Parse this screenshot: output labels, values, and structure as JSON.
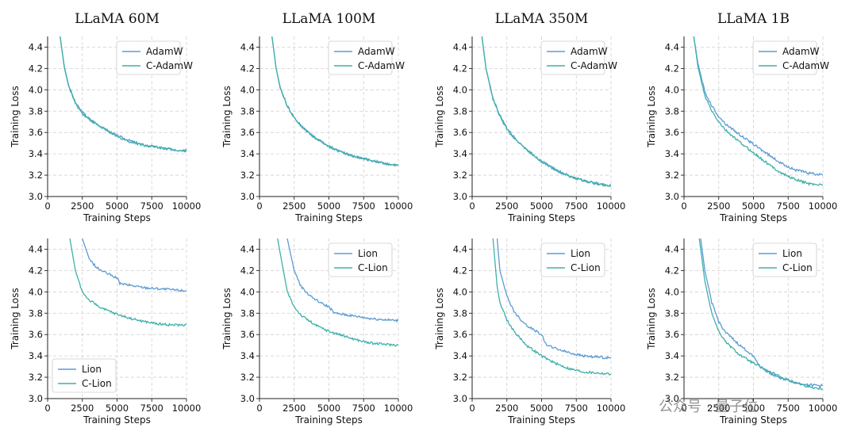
{
  "colors": {
    "adamw": "#5b9bd5",
    "c_adamw": "#3fb0a8",
    "lion": "#5b9bd5",
    "c_lion": "#3fb0a8",
    "grid": "#cfcfcf"
  },
  "watermark": "公众号 · 量子位",
  "chart_data": [
    {
      "type": "line",
      "title": "LLaMA 60M",
      "xlabel": "Training Steps",
      "ylabel": "Training Loss",
      "xlim": [
        0,
        10000
      ],
      "ylim": [
        3.0,
        4.5
      ],
      "xticks": [
        "0",
        "2500",
        "5000",
        "7500",
        "10000"
      ],
      "yticks": [
        "3.0",
        "3.2",
        "3.4",
        "3.6",
        "3.8",
        "4.0",
        "4.2",
        "4.4"
      ],
      "grid": true,
      "legend_position": "upper right",
      "series": [
        {
          "name": "AdamW",
          "color": "#5b9bd5",
          "x": [
            900,
            1200,
            1500,
            2000,
            2500,
            3000,
            4000,
            5000,
            6000,
            7000,
            8000,
            9000,
            10000
          ],
          "y": [
            4.5,
            4.22,
            4.05,
            3.88,
            3.79,
            3.73,
            3.64,
            3.57,
            3.52,
            3.48,
            3.46,
            3.44,
            3.43
          ]
        },
        {
          "name": "C-AdamW",
          "color": "#3fb0a8",
          "x": [
            900,
            1200,
            1500,
            2000,
            2500,
            3000,
            4000,
            5000,
            6000,
            7000,
            8000,
            9000,
            10000
          ],
          "y": [
            4.5,
            4.21,
            4.04,
            3.87,
            3.78,
            3.72,
            3.64,
            3.56,
            3.51,
            3.48,
            3.46,
            3.44,
            3.43
          ]
        }
      ]
    },
    {
      "type": "line",
      "title": "LLaMA 100M",
      "xlabel": "Training Steps",
      "ylabel": "Training Loss",
      "xlim": [
        0,
        10000
      ],
      "ylim": [
        3.0,
        4.5
      ],
      "xticks": [
        "0",
        "2500",
        "5000",
        "7500",
        "10000"
      ],
      "yticks": [
        "3.0",
        "3.2",
        "3.4",
        "3.6",
        "3.8",
        "4.0",
        "4.2",
        "4.4"
      ],
      "grid": true,
      "legend_position": "upper right",
      "series": [
        {
          "name": "AdamW",
          "color": "#5b9bd5",
          "x": [
            900,
            1200,
            1500,
            2000,
            2500,
            3000,
            4000,
            5000,
            6000,
            7000,
            8000,
            9000,
            10000
          ],
          "y": [
            4.5,
            4.2,
            4.02,
            3.85,
            3.74,
            3.66,
            3.55,
            3.47,
            3.41,
            3.37,
            3.34,
            3.31,
            3.29
          ]
        },
        {
          "name": "C-AdamW",
          "color": "#3fb0a8",
          "x": [
            900,
            1200,
            1500,
            2000,
            2500,
            3000,
            4000,
            5000,
            6000,
            7000,
            8000,
            9000,
            10000
          ],
          "y": [
            4.5,
            4.2,
            4.01,
            3.85,
            3.74,
            3.66,
            3.55,
            3.47,
            3.41,
            3.37,
            3.34,
            3.31,
            3.29
          ]
        }
      ]
    },
    {
      "type": "line",
      "title": "LLaMA 350M",
      "xlabel": "Training Steps",
      "ylabel": "Training Loss",
      "xlim": [
        0,
        10000
      ],
      "ylim": [
        3.0,
        4.5
      ],
      "xticks": [
        "0",
        "2500",
        "5000",
        "7500",
        "10000"
      ],
      "yticks": [
        "3.0",
        "3.2",
        "3.4",
        "3.6",
        "3.8",
        "4.0",
        "4.2",
        "4.4"
      ],
      "grid": true,
      "legend_position": "upper right",
      "series": [
        {
          "name": "AdamW",
          "color": "#5b9bd5",
          "x": [
            700,
            1000,
            1500,
            2000,
            2500,
            3000,
            4000,
            5000,
            6000,
            7000,
            8000,
            9000,
            10000
          ],
          "y": [
            4.5,
            4.2,
            3.92,
            3.76,
            3.64,
            3.56,
            3.43,
            3.33,
            3.25,
            3.19,
            3.15,
            3.12,
            3.1
          ]
        },
        {
          "name": "C-AdamW",
          "color": "#3fb0a8",
          "x": [
            700,
            1000,
            1500,
            2000,
            2500,
            3000,
            4000,
            5000,
            6000,
            7000,
            8000,
            9000,
            10000
          ],
          "y": [
            4.5,
            4.2,
            3.91,
            3.75,
            3.63,
            3.55,
            3.43,
            3.33,
            3.25,
            3.19,
            3.15,
            3.12,
            3.1
          ]
        }
      ]
    },
    {
      "type": "line",
      "title": "LLaMA 1B",
      "xlabel": "Training Steps",
      "ylabel": "Training Loss",
      "xlim": [
        0,
        10000
      ],
      "ylim": [
        3.0,
        4.5
      ],
      "xticks": [
        "0",
        "2500",
        "5000",
        "7500",
        "10000"
      ],
      "yticks": [
        "3.0",
        "3.2",
        "3.4",
        "3.6",
        "3.8",
        "4.0",
        "4.2",
        "4.4"
      ],
      "grid": true,
      "legend_position": "upper right",
      "series": [
        {
          "name": "AdamW",
          "color": "#5b9bd5",
          "x": [
            700,
            1000,
            1500,
            2000,
            2500,
            3000,
            4000,
            5000,
            6000,
            7000,
            8000,
            9000,
            10000
          ],
          "y": [
            4.5,
            4.25,
            3.98,
            3.85,
            3.75,
            3.68,
            3.58,
            3.49,
            3.4,
            3.31,
            3.25,
            3.22,
            3.2
          ]
        },
        {
          "name": "C-AdamW",
          "color": "#3fb0a8",
          "x": [
            700,
            1000,
            1500,
            2000,
            2500,
            3000,
            4000,
            5000,
            6000,
            7000,
            8000,
            9000,
            10000
          ],
          "y": [
            4.5,
            4.22,
            3.94,
            3.8,
            3.7,
            3.62,
            3.51,
            3.41,
            3.31,
            3.22,
            3.16,
            3.12,
            3.11
          ]
        }
      ]
    },
    {
      "type": "line",
      "title": "",
      "xlabel": "Training Steps",
      "ylabel": "Training Loss",
      "xlim": [
        0,
        10000
      ],
      "ylim": [
        3.0,
        4.5
      ],
      "xticks": [
        "0",
        "2500",
        "5000",
        "7500",
        "10000"
      ],
      "yticks": [
        "3.0",
        "3.2",
        "3.4",
        "3.6",
        "3.8",
        "4.0",
        "4.2",
        "4.4"
      ],
      "grid": true,
      "legend_position": "lower left",
      "series": [
        {
          "name": "Lion",
          "color": "#5b9bd5",
          "x": [
            2500,
            3000,
            3500,
            4000,
            4500,
            5000,
            5200,
            6000,
            7000,
            8000,
            9000,
            10000
          ],
          "y": [
            4.5,
            4.31,
            4.23,
            4.19,
            4.16,
            4.13,
            4.08,
            4.06,
            4.04,
            4.03,
            4.02,
            4.01
          ]
        },
        {
          "name": "C-Lion",
          "color": "#3fb0a8",
          "x": [
            1600,
            2000,
            2500,
            3000,
            4000,
            5000,
            6000,
            7000,
            8000,
            9000,
            10000
          ],
          "y": [
            4.5,
            4.2,
            4.0,
            3.92,
            3.84,
            3.79,
            3.75,
            3.72,
            3.7,
            3.69,
            3.69
          ]
        }
      ]
    },
    {
      "type": "line",
      "title": "",
      "xlabel": "Training Steps",
      "ylabel": "Training Loss",
      "xlim": [
        0,
        10000
      ],
      "ylim": [
        3.0,
        4.5
      ],
      "xticks": [
        "0",
        "2500",
        "5000",
        "7500",
        "10000"
      ],
      "yticks": [
        "3.0",
        "3.2",
        "3.4",
        "3.6",
        "3.8",
        "4.0",
        "4.2",
        "4.4"
      ],
      "grid": true,
      "legend_position": "upper right",
      "series": [
        {
          "name": "Lion",
          "color": "#5b9bd5",
          "x": [
            2000,
            2500,
            3000,
            3500,
            4000,
            4500,
            5000,
            5400,
            6000,
            7000,
            8000,
            9000,
            10000
          ],
          "y": [
            4.5,
            4.2,
            4.05,
            3.98,
            3.93,
            3.89,
            3.86,
            3.8,
            3.79,
            3.77,
            3.75,
            3.74,
            3.73
          ]
        },
        {
          "name": "C-Lion",
          "color": "#3fb0a8",
          "x": [
            1300,
            2000,
            2500,
            3000,
            4000,
            5000,
            6000,
            7000,
            8000,
            9000,
            10000
          ],
          "y": [
            4.5,
            4.0,
            3.86,
            3.78,
            3.69,
            3.63,
            3.59,
            3.55,
            3.52,
            3.51,
            3.5
          ]
        }
      ]
    },
    {
      "type": "line",
      "title": "",
      "xlabel": "Training Steps",
      "ylabel": "Training Loss",
      "xlim": [
        0,
        10000
      ],
      "ylim": [
        3.0,
        4.5
      ],
      "xticks": [
        "0",
        "2500",
        "5000",
        "7500",
        "10000"
      ],
      "yticks": [
        "3.0",
        "3.2",
        "3.4",
        "3.6",
        "3.8",
        "4.0",
        "4.2",
        "4.4"
      ],
      "grid": true,
      "legend_position": "upper right",
      "series": [
        {
          "name": "Lion",
          "color": "#5b9bd5",
          "x": [
            1800,
            2000,
            2500,
            3000,
            3500,
            4000,
            4500,
            5000,
            5300,
            6000,
            7000,
            8000,
            9000,
            10000
          ],
          "y": [
            4.5,
            4.2,
            3.96,
            3.82,
            3.74,
            3.68,
            3.64,
            3.6,
            3.51,
            3.47,
            3.43,
            3.4,
            3.39,
            3.38
          ]
        },
        {
          "name": "C-Lion",
          "color": "#3fb0a8",
          "x": [
            1500,
            1800,
            2000,
            2500,
            3000,
            4000,
            5000,
            6000,
            7000,
            8000,
            9000,
            10000
          ],
          "y": [
            4.5,
            4.05,
            3.9,
            3.74,
            3.63,
            3.49,
            3.4,
            3.33,
            3.28,
            3.25,
            3.24,
            3.23
          ]
        }
      ]
    },
    {
      "type": "line",
      "title": "",
      "xlabel": "Training Steps",
      "ylabel": "Training Loss",
      "xlim": [
        0,
        10000
      ],
      "ylim": [
        3.0,
        4.5
      ],
      "xticks": [
        "0",
        "2500",
        "5000",
        "7500",
        "10000"
      ],
      "yticks": [
        "3.0",
        "3.2",
        "3.4",
        "3.6",
        "3.8",
        "4.0",
        "4.2",
        "4.4"
      ],
      "grid": true,
      "legend_position": "upper right",
      "series": [
        {
          "name": "Lion",
          "color": "#5b9bd5",
          "x": [
            1200,
            1500,
            2000,
            2500,
            3000,
            4000,
            5000,
            5500,
            6000,
            7000,
            8000,
            9000,
            10000
          ],
          "y": [
            4.5,
            4.2,
            3.9,
            3.72,
            3.62,
            3.5,
            3.4,
            3.3,
            3.25,
            3.19,
            3.15,
            3.13,
            3.12
          ]
        },
        {
          "name": "C-Lion",
          "color": "#3fb0a8",
          "x": [
            1100,
            1500,
            2000,
            2500,
            3000,
            4000,
            5000,
            6000,
            7000,
            8000,
            9000,
            10000
          ],
          "y": [
            4.5,
            4.1,
            3.8,
            3.63,
            3.53,
            3.41,
            3.33,
            3.26,
            3.2,
            3.15,
            3.11,
            3.09
          ]
        }
      ]
    }
  ]
}
